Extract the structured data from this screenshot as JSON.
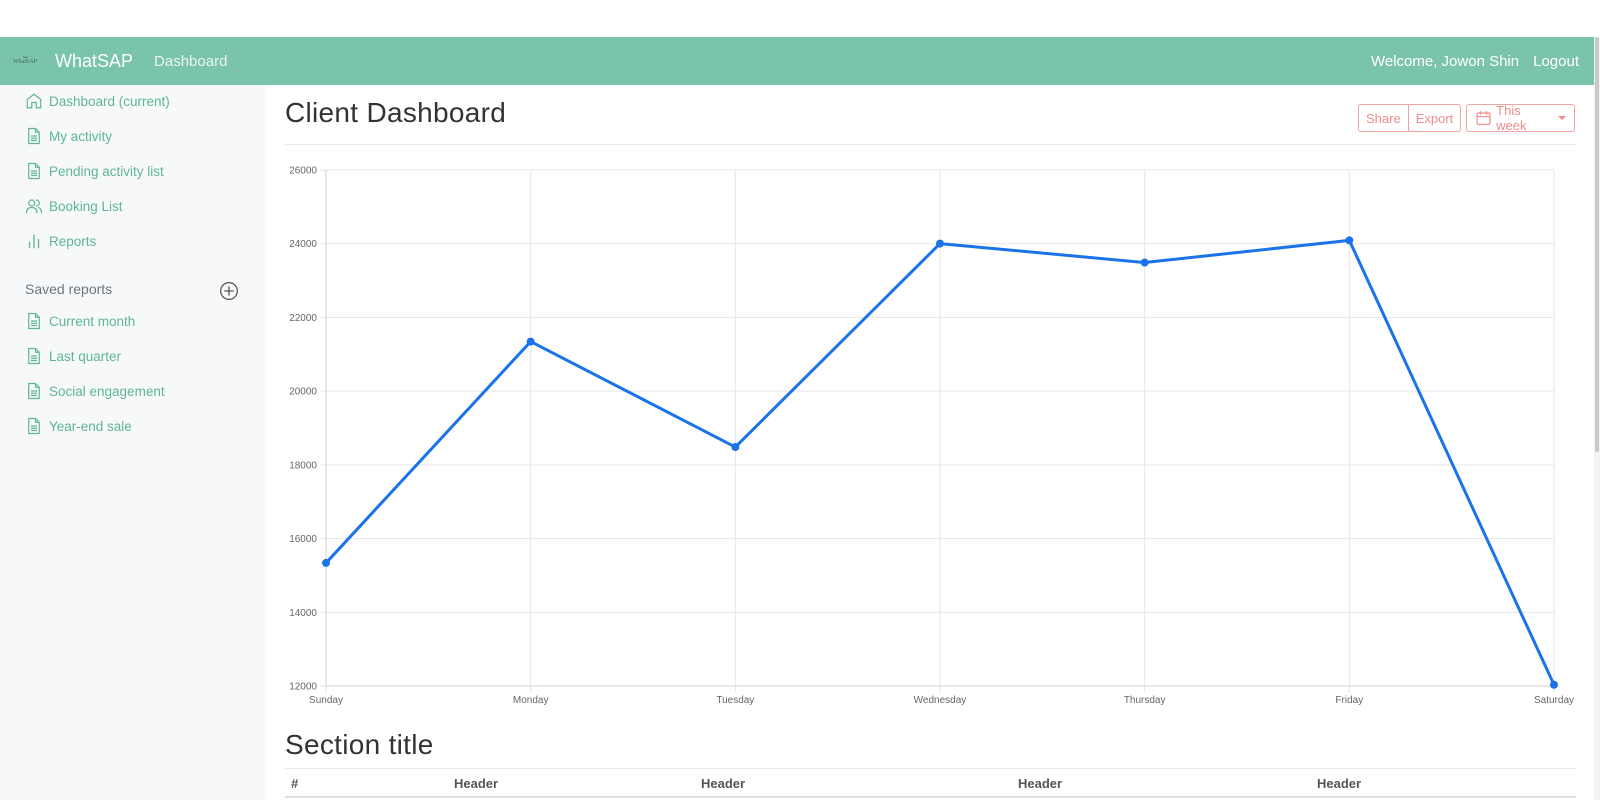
{
  "navbar": {
    "logo_text": "WhatSAP",
    "brand": "WhatSAP",
    "link": "Dashboard",
    "welcome": "Welcome, Jowon Shin",
    "logout": "Logout"
  },
  "sidebar": {
    "items": [
      {
        "label": "Dashboard (current)",
        "icon": "home-icon"
      },
      {
        "label": "My activity",
        "icon": "file-icon"
      },
      {
        "label": "Pending activity list",
        "icon": "file-icon"
      },
      {
        "label": "Booking List",
        "icon": "users-icon"
      },
      {
        "label": "Reports",
        "icon": "bar-chart-icon"
      }
    ],
    "saved_heading": "Saved reports",
    "saved_items": [
      {
        "label": "Current month",
        "icon": "file-icon"
      },
      {
        "label": "Last quarter",
        "icon": "file-icon"
      },
      {
        "label": "Social engagement",
        "icon": "file-icon"
      },
      {
        "label": "Year-end sale",
        "icon": "file-icon"
      }
    ]
  },
  "main": {
    "title": "Client Dashboard",
    "share": "Share",
    "export": "Export",
    "week": "This week",
    "section_title": "Section title",
    "table_headers": [
      "#",
      "Header",
      "Header",
      "Header",
      "Header"
    ]
  },
  "colors": {
    "navbar": "#7ac4ac",
    "sidebar_text": "#5eb597",
    "line": "#1a73e8",
    "button_outline": "#ef8c8c"
  },
  "chart_data": {
    "type": "line",
    "categories": [
      "Sunday",
      "Monday",
      "Tuesday",
      "Wednesday",
      "Thursday",
      "Friday",
      "Saturday"
    ],
    "series": [
      {
        "values": [
          15339,
          21345,
          18483,
          24003,
          23489,
          24092,
          12034
        ]
      }
    ],
    "ylim": [
      12000,
      26000
    ],
    "yticks": [
      12000,
      14000,
      16000,
      18000,
      20000,
      22000,
      24000,
      26000
    ],
    "grid": true
  }
}
